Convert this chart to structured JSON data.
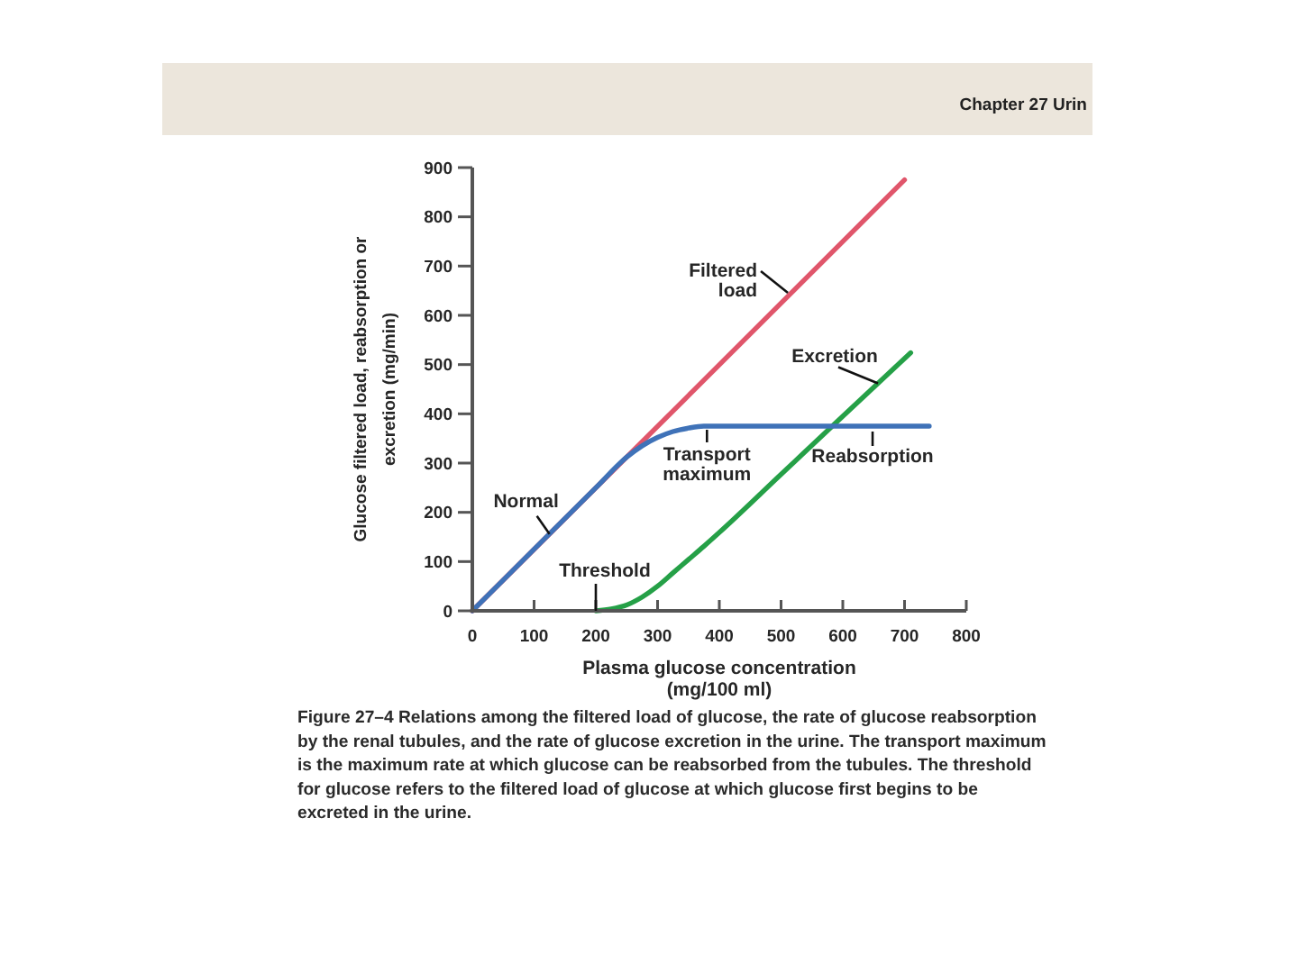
{
  "chart_data": {
    "type": "line",
    "xlabel": "Plasma glucose concentration (mg/100 ml)",
    "ylabel": "Glucose filtered load, reabsorption or excretion (mg/min)",
    "xlim": [
      0,
      800
    ],
    "ylim": [
      0,
      900
    ],
    "xticks": [
      0,
      100,
      200,
      300,
      400,
      500,
      600,
      700,
      800
    ],
    "yticks": [
      0,
      100,
      200,
      300,
      400,
      500,
      600,
      700,
      800,
      900
    ],
    "series": [
      {
        "name": "Filtered load",
        "color": "#e0566b",
        "x": [
          0,
          350,
          700
        ],
        "values": [
          0,
          437,
          875
        ]
      },
      {
        "name": "Excretion",
        "color": "#25a047",
        "x": [
          200,
          225,
          250,
          275,
          300,
          325,
          350,
          375,
          400,
          500,
          600,
          710
        ],
        "values": [
          0,
          4,
          12,
          28,
          50,
          77,
          104,
          131,
          159,
          277,
          395,
          524
        ]
      },
      {
        "name": "Reabsorption",
        "color": "#3f72b8",
        "x": [
          0,
          100,
          200,
          250,
          275,
          300,
          325,
          350,
          375,
          500,
          600,
          740
        ],
        "values": [
          0,
          125,
          250,
          312,
          335,
          352,
          364,
          371,
          375,
          375,
          375,
          375
        ]
      }
    ],
    "annotations": [
      "Chapter 27 Urin",
      {
        "text": "Normal",
        "x": 125,
        "y": 156
      },
      {
        "text": "Transport maximum",
        "x": 380,
        "y": 375
      },
      {
        "text": "Threshold",
        "x": 200,
        "y": 0
      },
      "Figure 27–4 Relations among the filtered load of glucose, the rate of glucose reabsorption by the renal tubules, and the rate of glucose excretion in the urine. The transport maximum is the maximum rate at which glucose can be reabsorbed from the tubules. The threshold for glucose refers to the filtered load of glucose at which glucose first begins to be excreted in the urine."
    ]
  }
}
